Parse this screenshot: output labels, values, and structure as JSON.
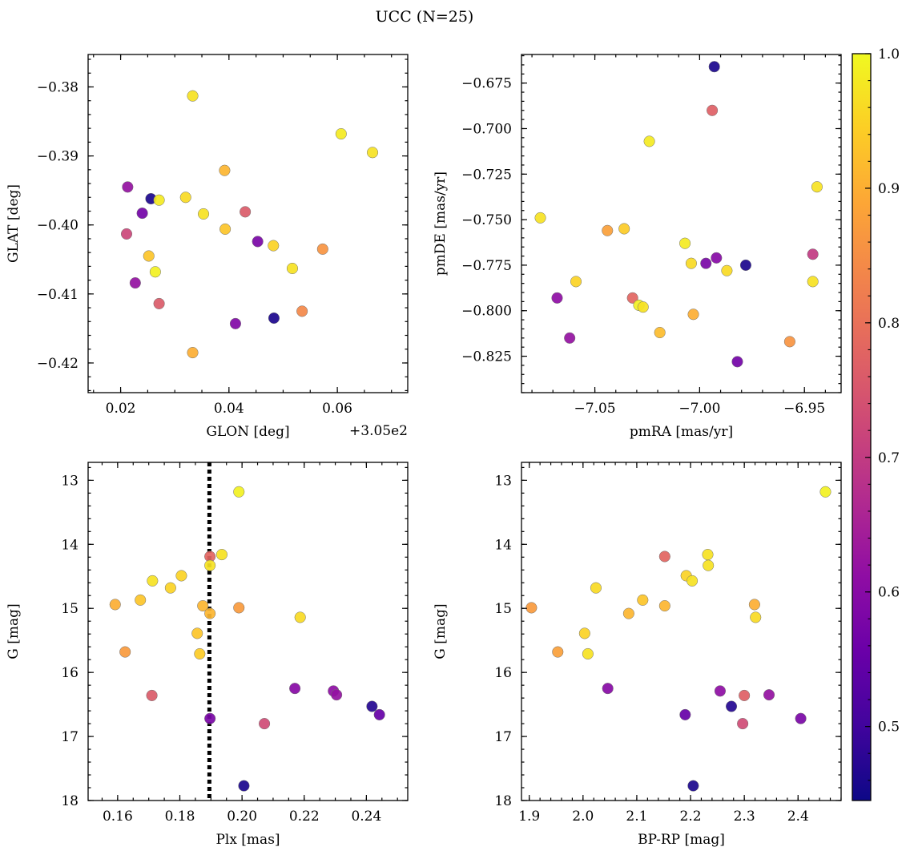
{
  "figure": {
    "title": "UCC (N=25)"
  },
  "colorbar": {
    "min": 0.445,
    "max": 1.0,
    "ticks": [
      0.5,
      0.6,
      0.7,
      0.8,
      0.9,
      1.0
    ],
    "tick_labels": [
      "0.5",
      "0.6",
      "0.7",
      "0.8",
      "0.9",
      "1.0"
    ],
    "colormap": "plasma"
  },
  "chart_data": [
    {
      "type": "scatter",
      "id": "glon-glat",
      "xlabel": "GLON [deg]",
      "ylabel": "GLAT [deg]",
      "x_offset_label": "+3.05e2",
      "xlim": [
        0.014,
        0.073
      ],
      "ylim": [
        -0.4243,
        -0.3753
      ],
      "y_inverted": false,
      "xticks": [
        0.02,
        0.04,
        0.06
      ],
      "xtick_labels": [
        "0.02",
        "0.04",
        "0.06"
      ],
      "yticks": [
        -0.38,
        -0.39,
        -0.4,
        -0.41,
        -0.42
      ],
      "ytick_labels": [
        "−0.38",
        "−0.39",
        "−0.40",
        "−0.41",
        "−0.42"
      ],
      "points": [
        {
          "x": 0.0333,
          "y": -0.3813,
          "c": 0.97
        },
        {
          "x": 0.0607,
          "y": -0.3868,
          "c": 0.98
        },
        {
          "x": 0.0665,
          "y": -0.3895,
          "c": 0.97
        },
        {
          "x": 0.0392,
          "y": -0.3921,
          "c": 0.91
        },
        {
          "x": 0.0213,
          "y": -0.3945,
          "c": 0.62
        },
        {
          "x": 0.0256,
          "y": -0.3962,
          "c": 0.46
        },
        {
          "x": 0.0271,
          "y": -0.3964,
          "c": 0.98
        },
        {
          "x": 0.032,
          "y": -0.396,
          "c": 0.96
        },
        {
          "x": 0.024,
          "y": -0.3983,
          "c": 0.57
        },
        {
          "x": 0.0353,
          "y": -0.3984,
          "c": 0.97
        },
        {
          "x": 0.043,
          "y": -0.3981,
          "c": 0.76
        },
        {
          "x": 0.0211,
          "y": -0.4013,
          "c": 0.72
        },
        {
          "x": 0.0393,
          "y": -0.4006,
          "c": 0.93
        },
        {
          "x": 0.0453,
          "y": -0.4024,
          "c": 0.58
        },
        {
          "x": 0.0482,
          "y": -0.403,
          "c": 0.95
        },
        {
          "x": 0.0573,
          "y": -0.4035,
          "c": 0.86
        },
        {
          "x": 0.0252,
          "y": -0.4045,
          "c": 0.93
        },
        {
          "x": 0.0517,
          "y": -0.4063,
          "c": 0.97
        },
        {
          "x": 0.0264,
          "y": -0.4068,
          "c": 0.99
        },
        {
          "x": 0.0227,
          "y": -0.4084,
          "c": 0.62
        },
        {
          "x": 0.0271,
          "y": -0.4114,
          "c": 0.76
        },
        {
          "x": 0.0535,
          "y": -0.4125,
          "c": 0.84
        },
        {
          "x": 0.0483,
          "y": -0.4135,
          "c": 0.46
        },
        {
          "x": 0.0412,
          "y": -0.4143,
          "c": 0.59
        },
        {
          "x": 0.0333,
          "y": -0.4185,
          "c": 0.9
        }
      ]
    },
    {
      "type": "scatter",
      "id": "pmra-pmde",
      "xlabel": "pmRA [mas/yr]",
      "ylabel": "pmDE [mas/yr]",
      "xlim": [
        -7.085,
        -6.9325
      ],
      "ylim": [
        -0.845,
        -0.6593
      ],
      "y_inverted": false,
      "xticks": [
        -7.05,
        -7.0,
        -6.95
      ],
      "xtick_labels": [
        "−7.05",
        "−7.00",
        "−6.95"
      ],
      "yticks": [
        -0.675,
        -0.7,
        -0.725,
        -0.75,
        -0.775,
        -0.8,
        -0.825
      ],
      "ytick_labels": [
        "−0.675",
        "−0.700",
        "−0.725",
        "−0.750",
        "−0.775",
        "−0.800",
        "−0.825"
      ],
      "points": [
        {
          "x": -6.993,
          "y": -0.666,
          "c": 0.46
        },
        {
          "x": -6.994,
          "y": -0.69,
          "c": 0.77
        },
        {
          "x": -7.024,
          "y": -0.707,
          "c": 0.98
        },
        {
          "x": -6.944,
          "y": -0.732,
          "c": 0.97
        },
        {
          "x": -7.076,
          "y": -0.749,
          "c": 0.97
        },
        {
          "x": -7.044,
          "y": -0.756,
          "c": 0.88
        },
        {
          "x": -7.036,
          "y": -0.755,
          "c": 0.94
        },
        {
          "x": -7.007,
          "y": -0.763,
          "c": 0.98
        },
        {
          "x": -6.946,
          "y": -0.769,
          "c": 0.7
        },
        {
          "x": -6.992,
          "y": -0.771,
          "c": 0.6
        },
        {
          "x": -7.004,
          "y": -0.774,
          "c": 0.96
        },
        {
          "x": -6.997,
          "y": -0.774,
          "c": 0.58
        },
        {
          "x": -6.978,
          "y": -0.775,
          "c": 0.46
        },
        {
          "x": -6.987,
          "y": -0.778,
          "c": 0.96
        },
        {
          "x": -7.059,
          "y": -0.784,
          "c": 0.95
        },
        {
          "x": -6.946,
          "y": -0.784,
          "c": 0.97
        },
        {
          "x": -7.068,
          "y": -0.793,
          "c": 0.61
        },
        {
          "x": -7.032,
          "y": -0.793,
          "c": 0.78
        },
        {
          "x": -7.029,
          "y": -0.797,
          "c": 0.99
        },
        {
          "x": -7.027,
          "y": -0.798,
          "c": 0.97
        },
        {
          "x": -7.003,
          "y": -0.802,
          "c": 0.9
        },
        {
          "x": -7.019,
          "y": -0.812,
          "c": 0.92
        },
        {
          "x": -7.062,
          "y": -0.815,
          "c": 0.62
        },
        {
          "x": -6.957,
          "y": -0.817,
          "c": 0.86
        },
        {
          "x": -6.982,
          "y": -0.828,
          "c": 0.57
        }
      ]
    },
    {
      "type": "scatter",
      "id": "plx-g",
      "xlabel": "Plx [mas]",
      "ylabel": "G [mag]",
      "xlim": [
        0.1505,
        0.2533
      ],
      "ylim": [
        18.0,
        12.72
      ],
      "y_inverted": true,
      "xticks": [
        0.16,
        0.18,
        0.2,
        0.22,
        0.24
      ],
      "xtick_labels": [
        "0.16",
        "0.18",
        "0.20",
        "0.22",
        "0.24"
      ],
      "yticks": [
        13,
        14,
        15,
        16,
        17,
        18
      ],
      "ytick_labels": [
        "13",
        "14",
        "15",
        "16",
        "17",
        "18"
      ],
      "vline": {
        "x": 0.1895
      },
      "points": [
        {
          "x": 0.199,
          "y": 13.18,
          "c": 0.99
        },
        {
          "x": 0.1897,
          "y": 14.19,
          "c": 0.78
        },
        {
          "x": 0.1935,
          "y": 14.16,
          "c": 0.97
        },
        {
          "x": 0.1897,
          "y": 14.33,
          "c": 0.97
        },
        {
          "x": 0.1712,
          "y": 14.57,
          "c": 0.97
        },
        {
          "x": 0.1805,
          "y": 14.49,
          "c": 0.95
        },
        {
          "x": 0.177,
          "y": 14.68,
          "c": 0.95
        },
        {
          "x": 0.1673,
          "y": 14.87,
          "c": 0.93
        },
        {
          "x": 0.1592,
          "y": 14.94,
          "c": 0.9
        },
        {
          "x": 0.1874,
          "y": 14.96,
          "c": 0.91
        },
        {
          "x": 0.199,
          "y": 14.99,
          "c": 0.87
        },
        {
          "x": 0.1897,
          "y": 15.08,
          "c": 0.91
        },
        {
          "x": 0.2187,
          "y": 15.14,
          "c": 0.96
        },
        {
          "x": 0.1856,
          "y": 15.39,
          "c": 0.93
        },
        {
          "x": 0.1624,
          "y": 15.68,
          "c": 0.87
        },
        {
          "x": 0.1864,
          "y": 15.71,
          "c": 0.94
        },
        {
          "x": 0.217,
          "y": 16.25,
          "c": 0.6
        },
        {
          "x": 0.2294,
          "y": 16.29,
          "c": 0.61
        },
        {
          "x": 0.2304,
          "y": 16.35,
          "c": 0.62
        },
        {
          "x": 0.171,
          "y": 16.36,
          "c": 0.76
        },
        {
          "x": 0.2418,
          "y": 16.53,
          "c": 0.47
        },
        {
          "x": 0.2442,
          "y": 16.66,
          "c": 0.55
        },
        {
          "x": 0.1897,
          "y": 16.72,
          "c": 0.58
        },
        {
          "x": 0.2072,
          "y": 16.8,
          "c": 0.73
        },
        {
          "x": 0.2006,
          "y": 17.77,
          "c": 0.46
        }
      ]
    },
    {
      "type": "scatter",
      "id": "bprp-g",
      "xlabel": "BP-RP [mag]",
      "ylabel": "G [mag]",
      "xlim": [
        1.8855,
        2.4801
      ],
      "ylim": [
        18.0,
        12.72
      ],
      "y_inverted": true,
      "xticks": [
        1.9,
        2.0,
        2.1,
        2.2,
        2.3,
        2.4
      ],
      "xtick_labels": [
        "1.9",
        "2.0",
        "2.1",
        "2.2",
        "2.3",
        "2.4"
      ],
      "yticks": [
        13,
        14,
        15,
        16,
        17,
        18
      ],
      "ytick_labels": [
        "13",
        "14",
        "15",
        "16",
        "17",
        "18"
      ],
      "points": [
        {
          "x": 2.451,
          "y": 13.18,
          "c": 0.99
        },
        {
          "x": 2.152,
          "y": 14.19,
          "c": 0.78
        },
        {
          "x": 2.232,
          "y": 14.16,
          "c": 0.97
        },
        {
          "x": 2.233,
          "y": 14.33,
          "c": 0.97
        },
        {
          "x": 2.192,
          "y": 14.49,
          "c": 0.95
        },
        {
          "x": 2.203,
          "y": 14.57,
          "c": 0.97
        },
        {
          "x": 2.024,
          "y": 14.68,
          "c": 0.96
        },
        {
          "x": 2.111,
          "y": 14.87,
          "c": 0.93
        },
        {
          "x": 2.319,
          "y": 14.94,
          "c": 0.9
        },
        {
          "x": 2.152,
          "y": 14.96,
          "c": 0.91
        },
        {
          "x": 1.904,
          "y": 14.99,
          "c": 0.87
        },
        {
          "x": 2.085,
          "y": 15.08,
          "c": 0.91
        },
        {
          "x": 2.321,
          "y": 15.14,
          "c": 0.96
        },
        {
          "x": 2.003,
          "y": 15.39,
          "c": 0.95
        },
        {
          "x": 1.953,
          "y": 15.68,
          "c": 0.88
        },
        {
          "x": 2.009,
          "y": 15.71,
          "c": 0.97
        },
        {
          "x": 2.046,
          "y": 16.25,
          "c": 0.6
        },
        {
          "x": 2.255,
          "y": 16.29,
          "c": 0.61
        },
        {
          "x": 2.346,
          "y": 16.35,
          "c": 0.62
        },
        {
          "x": 2.3,
          "y": 16.36,
          "c": 0.77
        },
        {
          "x": 2.276,
          "y": 16.53,
          "c": 0.47
        },
        {
          "x": 2.19,
          "y": 16.66,
          "c": 0.55
        },
        {
          "x": 2.405,
          "y": 16.72,
          "c": 0.58
        },
        {
          "x": 2.297,
          "y": 16.8,
          "c": 0.73
        },
        {
          "x": 2.205,
          "y": 17.77,
          "c": 0.46
        }
      ]
    }
  ]
}
